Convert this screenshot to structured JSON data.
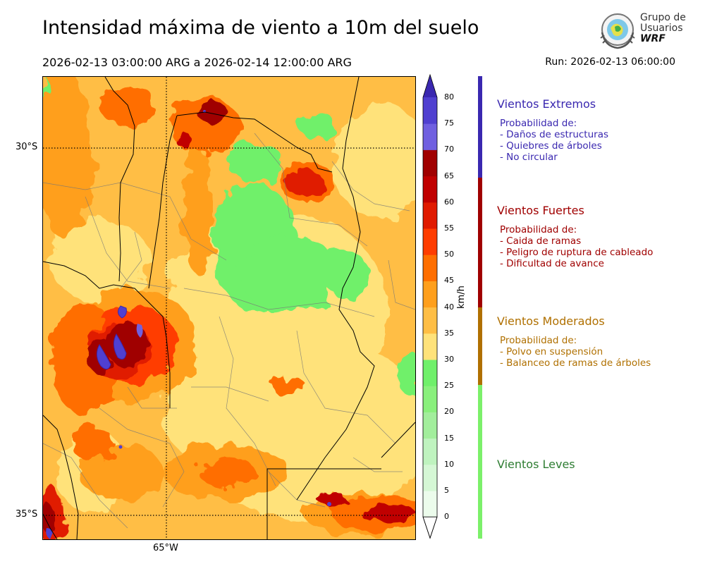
{
  "header": {
    "title": "Intensidad máxima de viento a 10m del suelo",
    "period": "2026-02-13 03:00:00 ARG  a  2026-02-14 12:00:00 ARG",
    "run": "Run: 2026-02-13 06:00:00"
  },
  "logo": {
    "line1": "Grupo de",
    "line2": "Usuarios",
    "line3": "WRF"
  },
  "map": {
    "lat_labels": [
      "30°S",
      "35°S"
    ],
    "lon_labels": [
      "65°W"
    ]
  },
  "colorbar": {
    "unit": "km/h",
    "ticks": [
      "80",
      "75",
      "70",
      "65",
      "60",
      "55",
      "50",
      "45",
      "40",
      "35",
      "30",
      "25",
      "20",
      "15",
      "10",
      "5",
      "0"
    ],
    "colors": {
      "0": "#ecfcec",
      "5": "#d5f7d5",
      "10": "#bff3bf",
      "15": "#a2ee9c",
      "20": "#89f07c",
      "25": "#6ff06a",
      "30": "#ffe27a",
      "35": "#ffbe45",
      "40": "#ff9f1c",
      "45": "#ff6e00",
      "50": "#ff3c00",
      "55": "#e01a00",
      "60": "#c00000",
      "65": "#a00000",
      "70": "#7060e0",
      "75": "#5040d0",
      "80": "#3a28b0"
    }
  },
  "categories": {
    "extremos": {
      "title": "Vientos Extremos",
      "color": "#3a28b0",
      "intro": "Probabilidad de:",
      "items": [
        "- Daños de estructuras",
        "- Quiebres de árboles",
        "- No circular"
      ]
    },
    "fuertes": {
      "title": "Vientos Fuertes",
      "color": "#a00000",
      "intro": "Probabilidad de:",
      "items": [
        "- Caida de ramas",
        "- Peligro de ruptura de cableado",
        "- Dificultad de avance"
      ]
    },
    "moderados": {
      "title": "Vientos Moderados",
      "color": "#b07000",
      "intro": "Probabilidad de:",
      "items": [
        "- Polvo en suspensión",
        "- Balanceo de ramas de árboles"
      ]
    },
    "leves": {
      "title": "Vientos Leves",
      "color": "#2e7d32"
    }
  }
}
